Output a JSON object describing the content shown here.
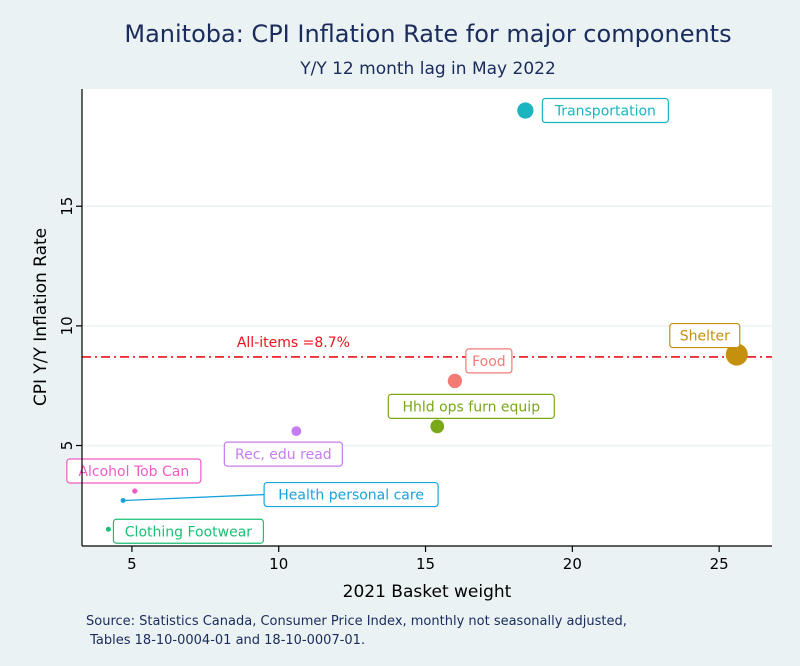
{
  "chart_data": {
    "type": "scatter",
    "title": "Manitoba: CPI Inflation Rate for major components",
    "subtitle": "Y/Y 12 month lag in May 2022",
    "xlabel": "2021 Basket weight",
    "ylabel": "CPI Y/Y Inflation Rate",
    "xlim": [
      3.3,
      26.8
    ],
    "ylim": [
      0.8,
      19.9
    ],
    "xticks": [
      5,
      10,
      15,
      20,
      25
    ],
    "yticks": [
      5,
      10,
      15
    ],
    "grid": "horizontal",
    "reference_line": {
      "y": 8.7,
      "label": "All-items =8.7%",
      "color": "#e8131b"
    },
    "points": [
      {
        "name": "Transportation",
        "x": 18.4,
        "y": 19.0,
        "color": "#1ab5bf"
      },
      {
        "name": "Shelter",
        "x": 25.6,
        "y": 8.8,
        "color": "#c4900e"
      },
      {
        "name": "Food",
        "x": 16.0,
        "y": 7.7,
        "color": "#f47a74"
      },
      {
        "name": "Hhld ops furn equip",
        "x": 15.4,
        "y": 5.8,
        "color": "#7aa818"
      },
      {
        "name": "Rec, edu read",
        "x": 10.6,
        "y": 5.6,
        "color": "#c67cf2"
      },
      {
        "name": "Alcohol Tob Can",
        "x": 5.1,
        "y": 3.1,
        "color": "#f05cc4"
      },
      {
        "name": "Health personal care",
        "x": 4.7,
        "y": 2.7,
        "color": "#1aa2dc"
      },
      {
        "name": "Clothing Footwear",
        "x": 4.2,
        "y": 1.5,
        "color": "#1abf73"
      }
    ]
  },
  "source_note": {
    "line1": "Source: Statistics Canada, Consumer Price Index, monthly not seasonally adjusted,",
    "line2": " Tables 18-10-0004-01 and 18-10-0007-01."
  }
}
